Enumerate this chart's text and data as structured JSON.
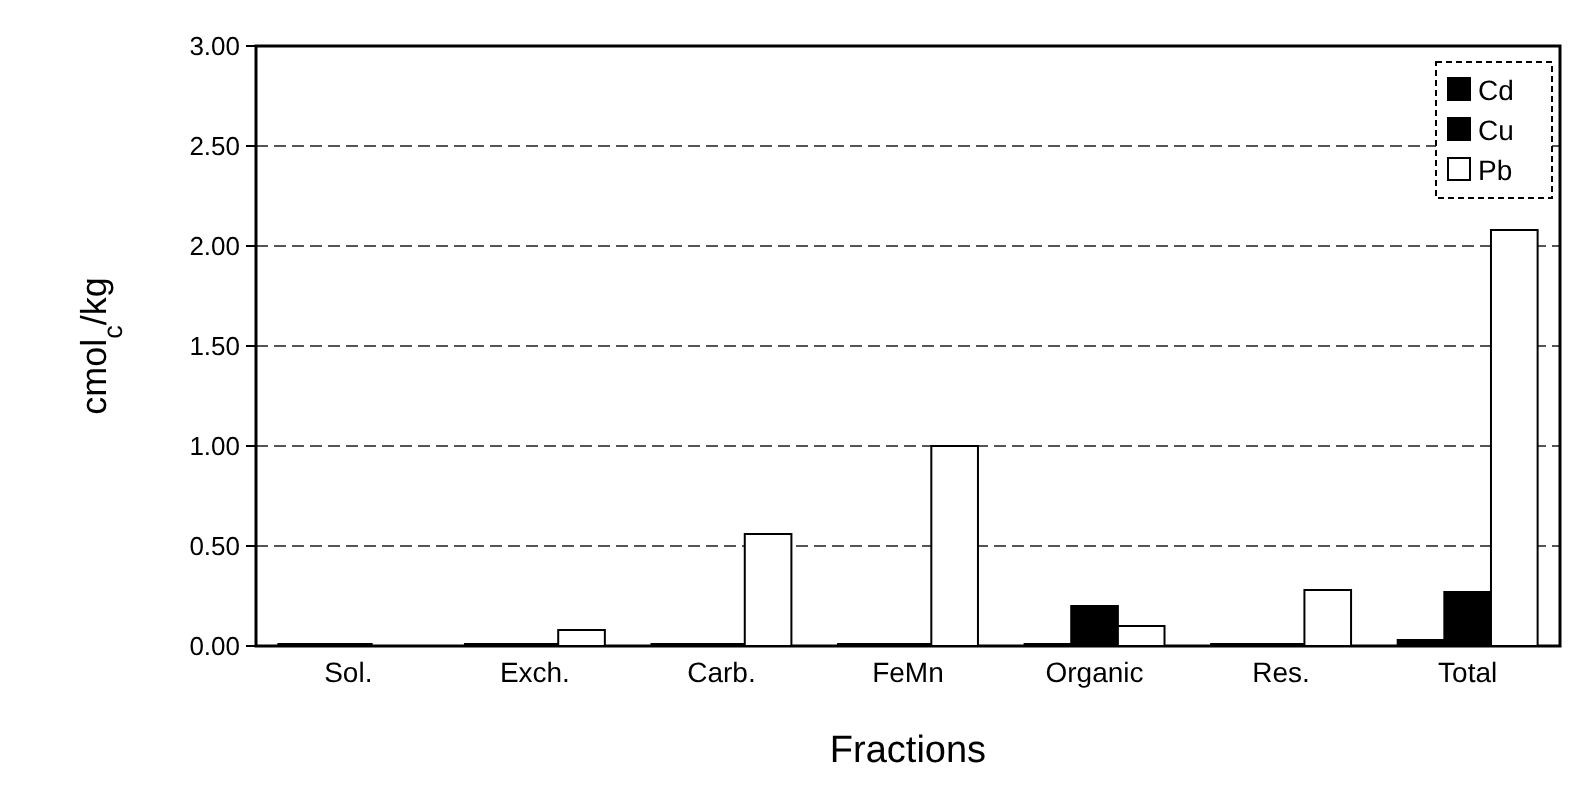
{
  "chart_data": {
    "type": "bar",
    "xlabel": "Fractions",
    "ylabel": "cmol$_{c}$/kg",
    "categories": [
      "Sol.",
      "Exch.",
      "Carb.",
      "FeMn",
      "Organic",
      "Res.",
      "Total"
    ],
    "series": [
      {
        "name": "Cd",
        "color": "#000000",
        "values": [
          0.01,
          0.01,
          0.01,
          0.01,
          0.01,
          0.01,
          0.03
        ]
      },
      {
        "name": "Cu",
        "color": "#000000",
        "values": [
          0.01,
          0.01,
          0.01,
          0.01,
          0.2,
          0.01,
          0.27
        ]
      },
      {
        "name": "Pb",
        "color": "#ffffff",
        "values": [
          null,
          0.08,
          0.56,
          1.0,
          0.1,
          0.28,
          2.08
        ]
      }
    ],
    "ylim": [
      0,
      3
    ],
    "yticks": [
      {
        "value": 0,
        "label": "0.00"
      },
      {
        "value": 0.5,
        "label": "0.50"
      },
      {
        "value": 1,
        "label": "1.00"
      },
      {
        "value": 1.5,
        "label": "1.50"
      },
      {
        "value": 2,
        "label": "2.00"
      },
      {
        "value": 2.5,
        "label": "2.50"
      },
      {
        "value": 3,
        "label": "3.00"
      }
    ],
    "grid": "y",
    "legend": "top right"
  }
}
